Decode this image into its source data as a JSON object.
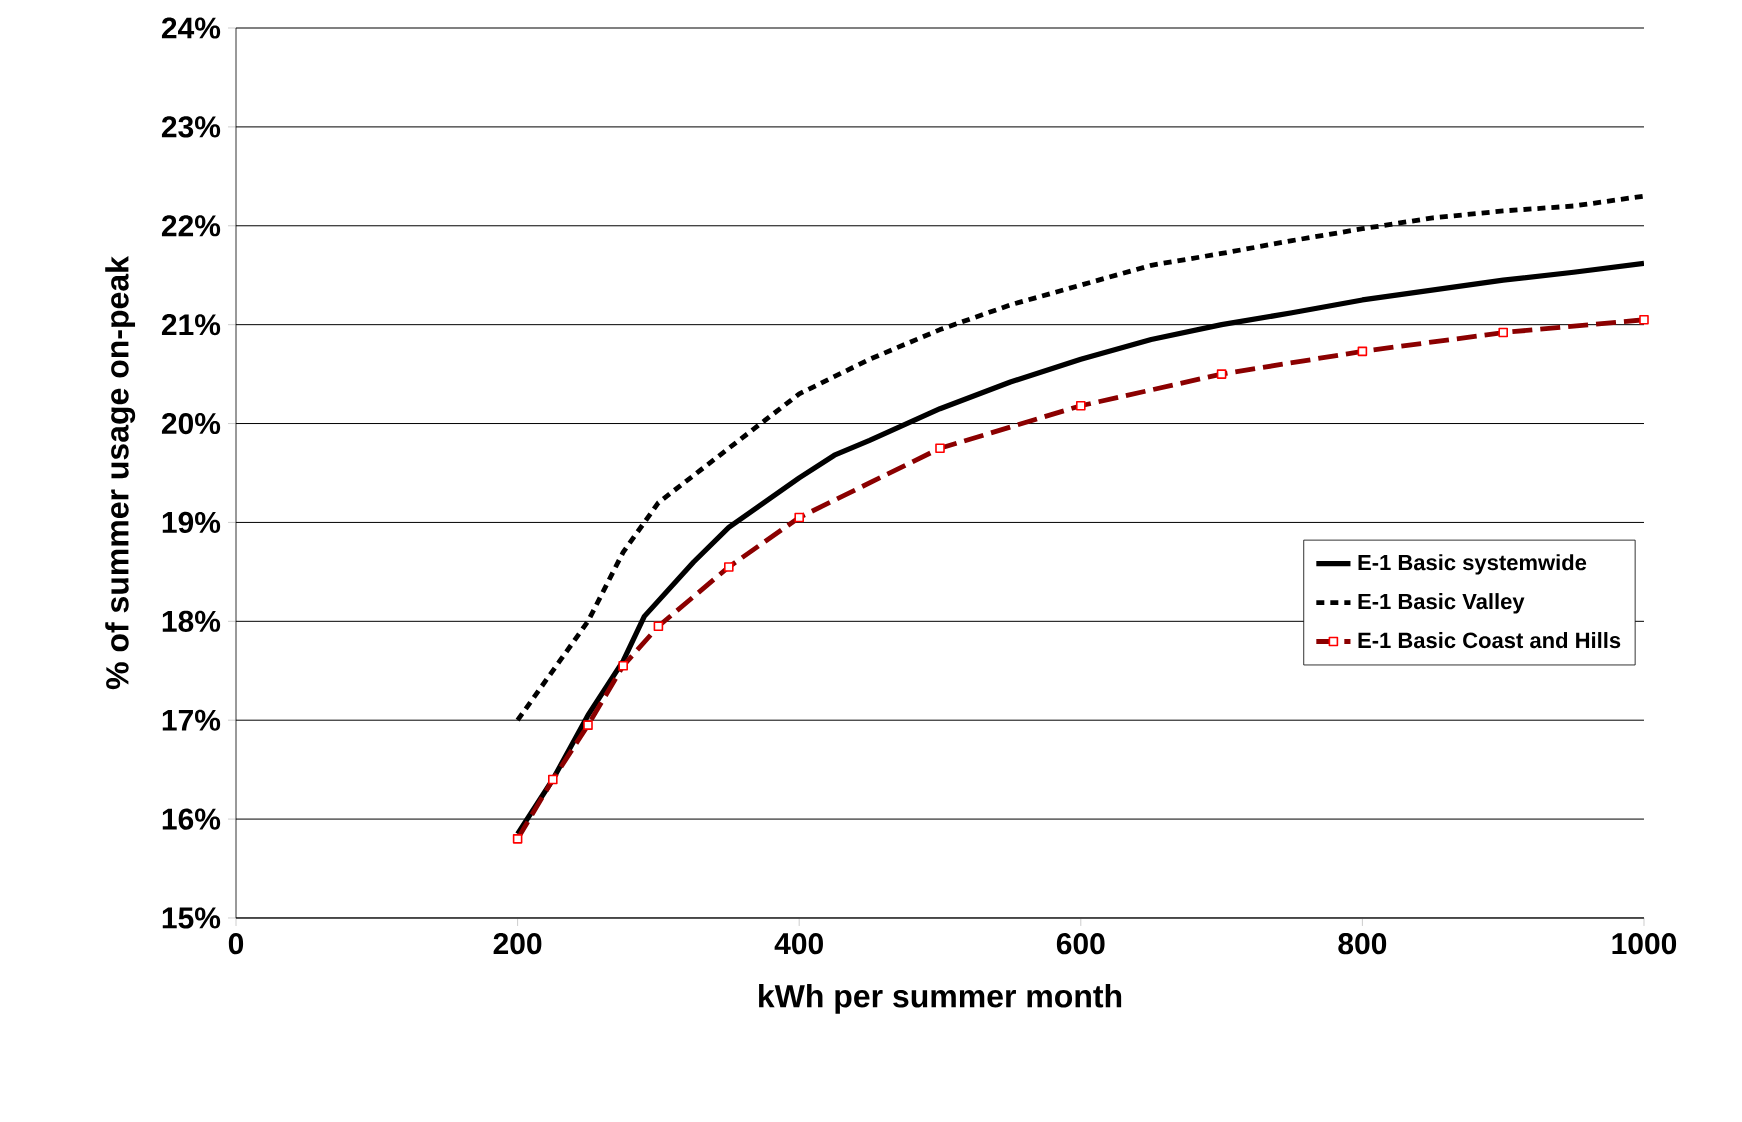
{
  "chart_data": {
    "type": "line",
    "xlabel": "kWh per summer month",
    "ylabel": "% of summer usage on-peak",
    "xlim": [
      0,
      1000
    ],
    "xticks": [
      0,
      200,
      400,
      600,
      800,
      1000
    ],
    "ylim": [
      15,
      24
    ],
    "yticks": [
      {
        "value": 15,
        "label": "15%"
      },
      {
        "value": 16,
        "label": "16%"
      },
      {
        "value": 17,
        "label": "17%"
      },
      {
        "value": 18,
        "label": "18%"
      },
      {
        "value": 19,
        "label": "19%"
      },
      {
        "value": 20,
        "label": "20%"
      },
      {
        "value": 21,
        "label": "21%"
      },
      {
        "value": 22,
        "label": "22%"
      },
      {
        "value": 23,
        "label": "23%"
      },
      {
        "value": 24,
        "label": "24%"
      }
    ],
    "grid": "y",
    "legend": "right",
    "series": [
      {
        "name": "E-1 Basic systemwide",
        "color": "#000000",
        "line_style": "solid",
        "marker": "none",
        "x": [
          200,
          225,
          250,
          275,
          290,
          325,
          350,
          375,
          400,
          425,
          450,
          500,
          550,
          600,
          650,
          700,
          750,
          800,
          850,
          900,
          950,
          1000
        ],
        "values": [
          15.85,
          16.4,
          17.05,
          17.6,
          18.05,
          18.6,
          18.95,
          19.2,
          19.45,
          19.68,
          19.83,
          20.15,
          20.42,
          20.65,
          20.85,
          21.0,
          21.12,
          21.25,
          21.35,
          21.45,
          21.53,
          21.62
        ]
      },
      {
        "name": "E-1 Basic Valley",
        "color": "#000000",
        "line_style": "dotted",
        "marker": "none",
        "x": [
          200,
          250,
          275,
          300,
          350,
          400,
          450,
          500,
          550,
          600,
          650,
          700,
          750,
          800,
          850,
          900,
          950,
          1000
        ],
        "values": [
          17.0,
          18.0,
          18.7,
          19.2,
          19.75,
          20.3,
          20.65,
          20.95,
          21.2,
          21.4,
          21.6,
          21.72,
          21.85,
          21.97,
          22.08,
          22.15,
          22.2,
          22.3
        ]
      },
      {
        "name": "E-1 Basic Coast and Hills",
        "color": "#8b0000",
        "line_style": "dashed",
        "marker": "square",
        "x": [
          200,
          225,
          250,
          275,
          300,
          350,
          400,
          500,
          600,
          700,
          800,
          900,
          1000
        ],
        "values": [
          15.8,
          16.4,
          16.95,
          17.55,
          17.95,
          18.55,
          19.05,
          19.75,
          20.18,
          20.5,
          20.73,
          20.92,
          21.05
        ]
      }
    ]
  }
}
